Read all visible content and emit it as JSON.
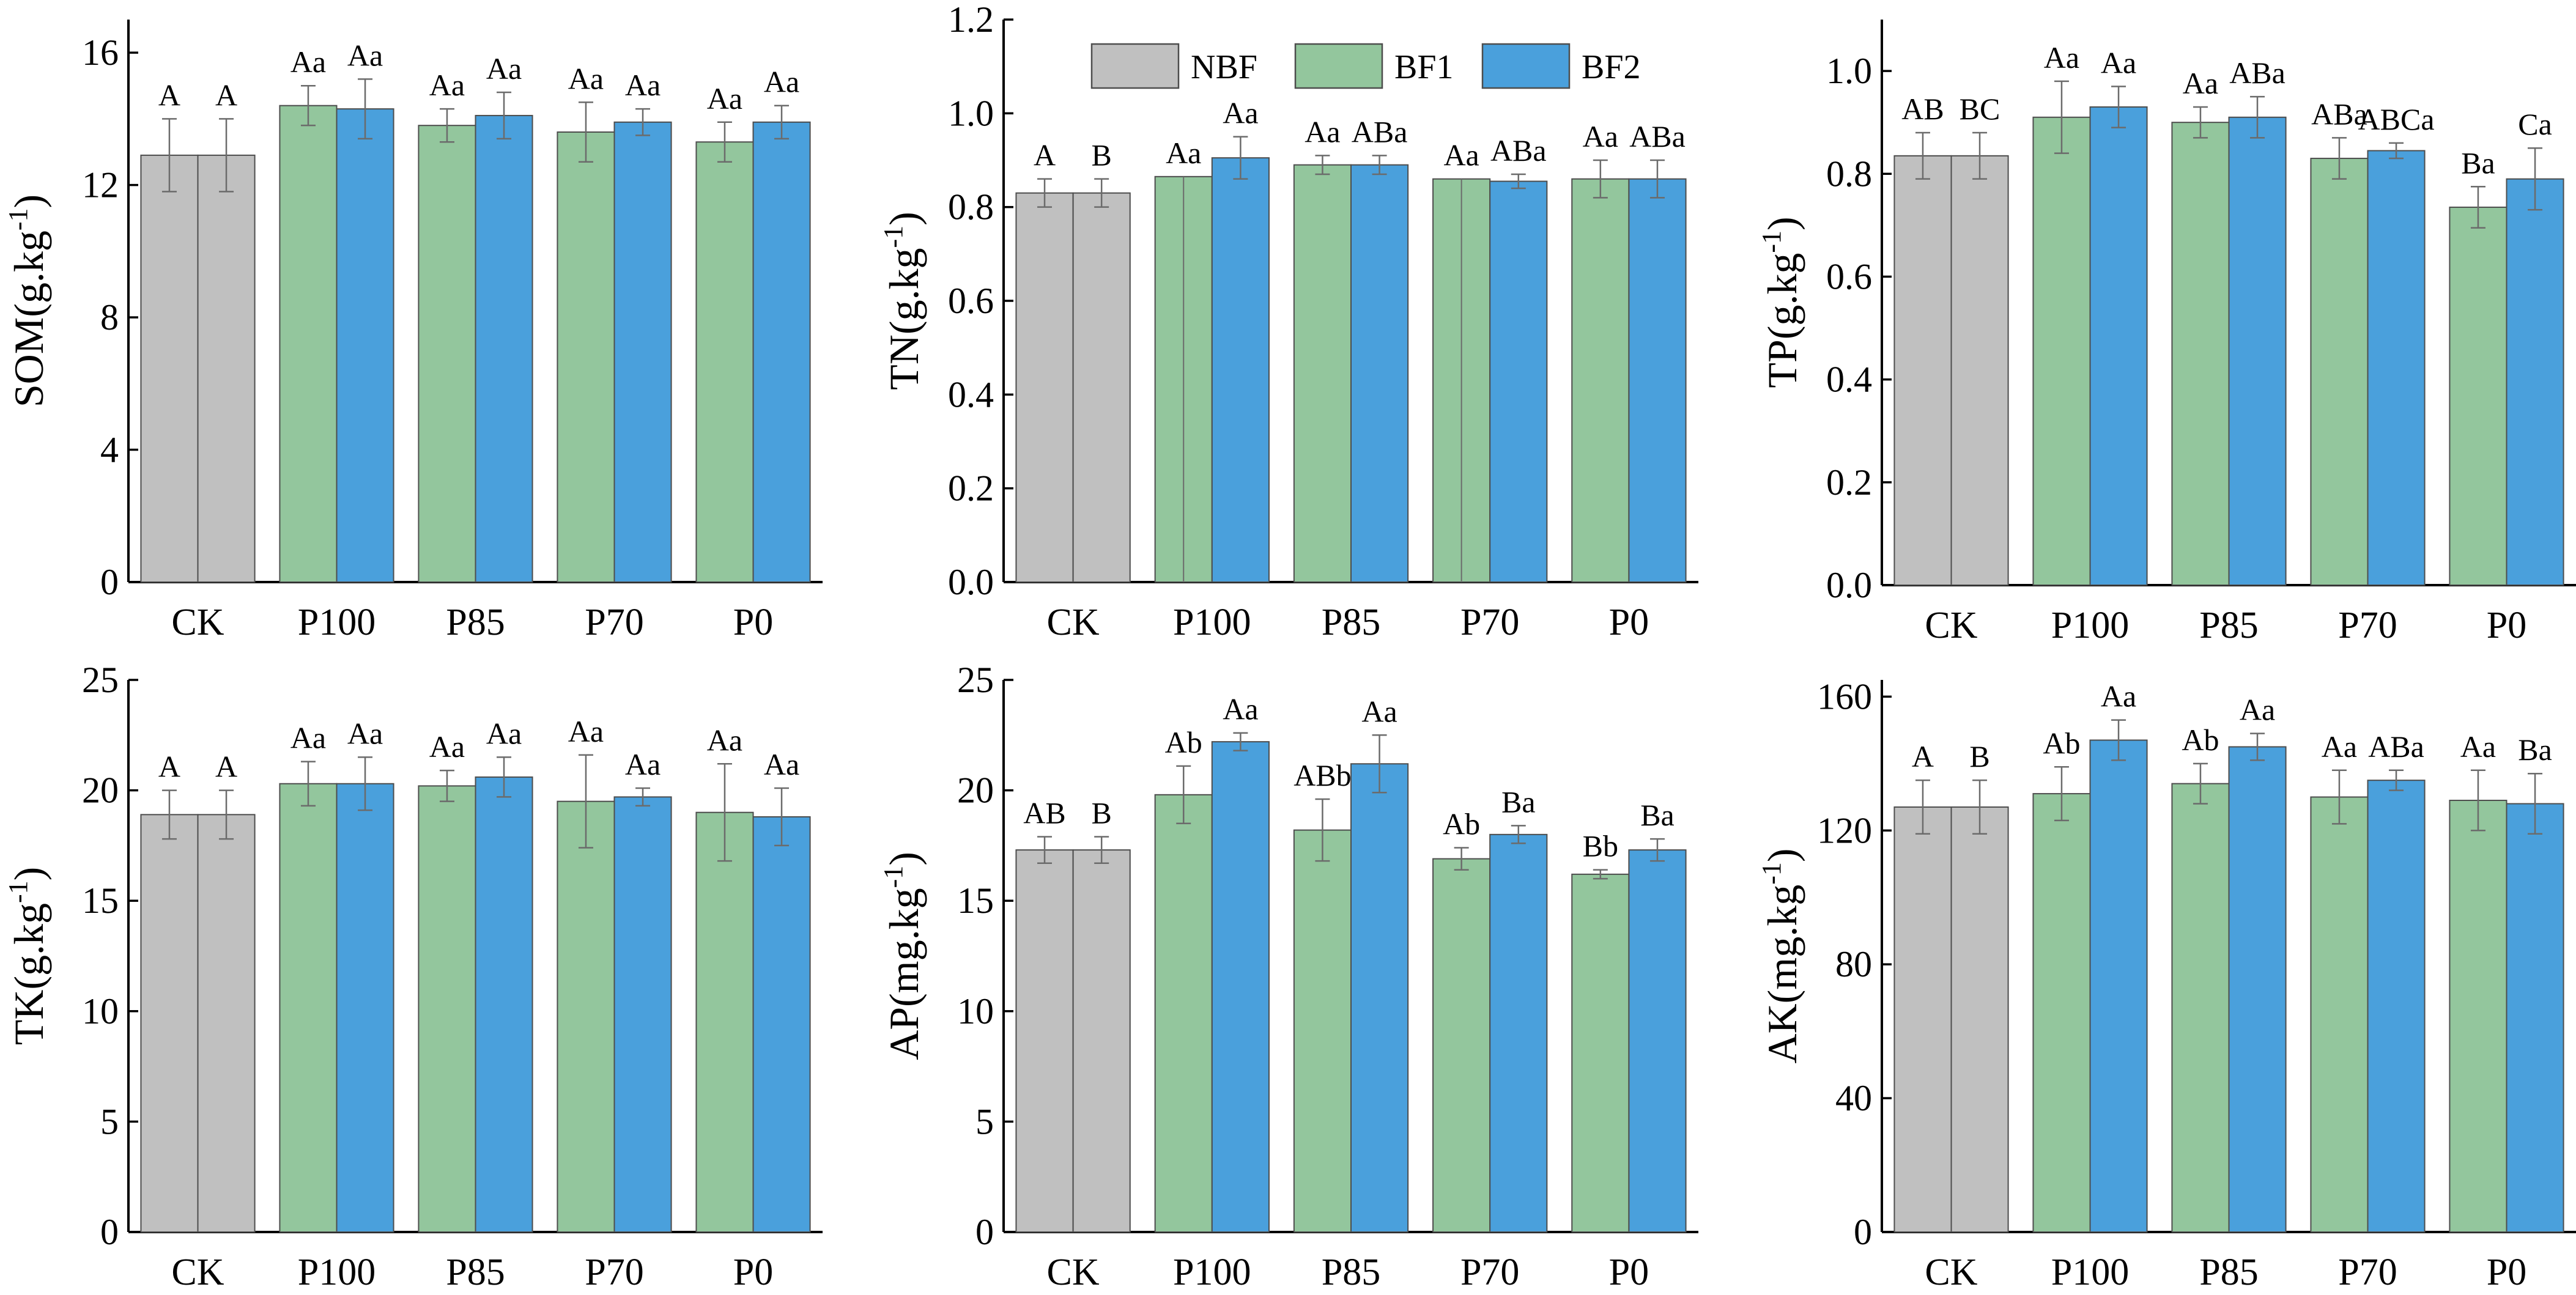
{
  "legend": {
    "items": [
      {
        "name": "NBF",
        "color": "#c0c0c0"
      },
      {
        "name": "BF1",
        "color": "#93c69d"
      },
      {
        "name": "BF2",
        "color": "#4aa0dc"
      }
    ]
  },
  "colors": {
    "NBF": "#c0c0c0",
    "BF1": "#93c69d",
    "BF2": "#4aa0dc",
    "axis": "#000000",
    "errorbar": "#6b6b6b"
  },
  "chart_data": [
    {
      "id": "som",
      "type": "bar",
      "ylabel": "SOM(g.kg",
      "ylabel_sup": "-1",
      "ylim": [
        0,
        17
      ],
      "yticks": [
        0,
        4,
        8,
        12,
        16
      ],
      "categories": [
        "CK",
        "P100",
        "P85",
        "P70",
        "P0"
      ],
      "bars": [
        [
          {
            "series": "NBF",
            "value": 12.9,
            "err": 1.1,
            "label": "A"
          },
          {
            "series": "NBF",
            "value": 12.9,
            "err": 1.1,
            "label": "A"
          }
        ],
        [
          {
            "series": "BF1",
            "value": 14.4,
            "err": 0.6,
            "label": "Aa"
          },
          {
            "series": "BF2",
            "value": 14.3,
            "err": 0.9,
            "label": "Aa"
          }
        ],
        [
          {
            "series": "BF1",
            "value": 13.8,
            "err": 0.5,
            "label": "Aa"
          },
          {
            "series": "BF2",
            "value": 14.1,
            "err": 0.7,
            "label": "Aa"
          }
        ],
        [
          {
            "series": "BF1",
            "value": 13.6,
            "err": 0.9,
            "label": "Aa"
          },
          {
            "series": "BF2",
            "value": 13.9,
            "err": 0.4,
            "label": "Aa"
          }
        ],
        [
          {
            "series": "BF1",
            "value": 13.3,
            "err": 0.6,
            "label": "Aa"
          },
          {
            "series": "BF2",
            "value": 13.9,
            "err": 0.5,
            "label": "Aa"
          }
        ]
      ]
    },
    {
      "id": "tn",
      "type": "bar",
      "ylabel": "TN(g.kg",
      "ylabel_sup": "-1",
      "ylim": [
        0,
        1.2
      ],
      "yticks": [
        0.0,
        0.2,
        0.4,
        0.6,
        0.8,
        1.0,
        1.2
      ],
      "categories": [
        "CK",
        "P100",
        "P85",
        "P70",
        "P0"
      ],
      "bars": [
        [
          {
            "series": "NBF",
            "value": 0.83,
            "err": 0.03,
            "label": "A"
          },
          {
            "series": "NBF",
            "value": 0.83,
            "err": 0.03,
            "label": "B"
          }
        ],
        [
          {
            "series": "BF1",
            "value": 0.865,
            "err": 0.0,
            "label": "Aa"
          },
          {
            "series": "BF2",
            "value": 0.905,
            "err": 0.045,
            "label": "Aa"
          }
        ],
        [
          {
            "series": "BF1",
            "value": 0.89,
            "err": 0.02,
            "label": "Aa"
          },
          {
            "series": "BF2",
            "value": 0.89,
            "err": 0.02,
            "label": "ABa"
          }
        ],
        [
          {
            "series": "BF1",
            "value": 0.86,
            "err": 0.0,
            "label": "Aa"
          },
          {
            "series": "BF2",
            "value": 0.855,
            "err": 0.015,
            "label": "ABa"
          }
        ],
        [
          {
            "series": "BF1",
            "value": 0.86,
            "err": 0.04,
            "label": "Aa"
          },
          {
            "series": "BF2",
            "value": 0.86,
            "err": 0.04,
            "label": "ABa"
          }
        ]
      ]
    },
    {
      "id": "tp",
      "type": "bar",
      "ylabel": "TP(g.kg",
      "ylabel_sup": "-1",
      "ylim": [
        0,
        1.1
      ],
      "yticks": [
        0.0,
        0.2,
        0.4,
        0.6,
        0.8,
        1.0
      ],
      "categories": [
        "CK",
        "P100",
        "P85",
        "P70",
        "P0"
      ],
      "bars": [
        [
          {
            "series": "NBF",
            "value": 0.835,
            "err": 0.045,
            "label": "AB"
          },
          {
            "series": "NBF",
            "value": 0.835,
            "err": 0.045,
            "label": "BC"
          }
        ],
        [
          {
            "series": "BF1",
            "value": 0.91,
            "err": 0.07,
            "label": "Aa"
          },
          {
            "series": "BF2",
            "value": 0.93,
            "err": 0.04,
            "label": "Aa"
          }
        ],
        [
          {
            "series": "BF1",
            "value": 0.9,
            "err": 0.03,
            "label": "Aa"
          },
          {
            "series": "BF2",
            "value": 0.91,
            "err": 0.04,
            "label": "ABa"
          }
        ],
        [
          {
            "series": "BF1",
            "value": 0.83,
            "err": 0.04,
            "label": "ABa"
          },
          {
            "series": "BF2",
            "value": 0.845,
            "err": 0.015,
            "label": "ABCa"
          }
        ],
        [
          {
            "series": "BF1",
            "value": 0.735,
            "err": 0.04,
            "label": "Ba"
          },
          {
            "series": "BF2",
            "value": 0.79,
            "err": 0.06,
            "label": "Ca"
          }
        ]
      ]
    },
    {
      "id": "tk",
      "type": "bar",
      "ylabel": "TK(g.kg",
      "ylabel_sup": "-1",
      "ylim": [
        0,
        25
      ],
      "yticks": [
        0,
        5,
        10,
        15,
        20,
        25
      ],
      "categories": [
        "CK",
        "P100",
        "P85",
        "P70",
        "P0"
      ],
      "bars": [
        [
          {
            "series": "NBF",
            "value": 18.9,
            "err": 1.1,
            "label": "A"
          },
          {
            "series": "NBF",
            "value": 18.9,
            "err": 1.1,
            "label": "A"
          }
        ],
        [
          {
            "series": "BF1",
            "value": 20.3,
            "err": 1.0,
            "label": "Aa"
          },
          {
            "series": "BF2",
            "value": 20.3,
            "err": 1.2,
            "label": "Aa"
          }
        ],
        [
          {
            "series": "BF1",
            "value": 20.2,
            "err": 0.7,
            "label": "Aa"
          },
          {
            "series": "BF2",
            "value": 20.6,
            "err": 0.9,
            "label": "Aa"
          }
        ],
        [
          {
            "series": "BF1",
            "value": 19.5,
            "err": 2.1,
            "label": "Aa"
          },
          {
            "series": "BF2",
            "value": 19.7,
            "err": 0.4,
            "label": "Aa"
          }
        ],
        [
          {
            "series": "BF1",
            "value": 19.0,
            "err": 2.2,
            "label": "Aa"
          },
          {
            "series": "BF2",
            "value": 18.8,
            "err": 1.3,
            "label": "Aa"
          }
        ]
      ]
    },
    {
      "id": "ap",
      "type": "bar",
      "ylabel": "AP(mg.kg",
      "ylabel_sup": "-1",
      "ylim": [
        0,
        25
      ],
      "yticks": [
        0,
        5,
        10,
        15,
        20,
        25
      ],
      "categories": [
        "CK",
        "P100",
        "P85",
        "P70",
        "P0"
      ],
      "bars": [
        [
          {
            "series": "NBF",
            "value": 17.3,
            "err": 0.6,
            "label": "AB"
          },
          {
            "series": "NBF",
            "value": 17.3,
            "err": 0.6,
            "label": "B"
          }
        ],
        [
          {
            "series": "BF1",
            "value": 19.8,
            "err": 1.3,
            "label": "Ab"
          },
          {
            "series": "BF2",
            "value": 22.2,
            "err": 0.4,
            "label": "Aa"
          }
        ],
        [
          {
            "series": "BF1",
            "value": 18.2,
            "err": 1.4,
            "label": "ABb"
          },
          {
            "series": "BF2",
            "value": 21.2,
            "err": 1.3,
            "label": "Aa"
          }
        ],
        [
          {
            "series": "BF1",
            "value": 16.9,
            "err": 0.5,
            "label": "Ab"
          },
          {
            "series": "BF2",
            "value": 18.0,
            "err": 0.4,
            "label": "Ba"
          }
        ],
        [
          {
            "series": "BF1",
            "value": 16.2,
            "err": 0.2,
            "label": "Bb"
          },
          {
            "series": "BF2",
            "value": 17.3,
            "err": 0.5,
            "label": "Ba"
          }
        ]
      ]
    },
    {
      "id": "ak",
      "type": "bar",
      "ylabel": "AK(mg.kg",
      "ylabel_sup": "-1",
      "ylim": [
        0,
        165
      ],
      "yticks": [
        0,
        40,
        80,
        120,
        160
      ],
      "categories": [
        "CK",
        "P100",
        "P85",
        "P70",
        "P0"
      ],
      "bars": [
        [
          {
            "series": "NBF",
            "value": 127,
            "err": 8,
            "label": "A"
          },
          {
            "series": "NBF",
            "value": 127,
            "err": 8,
            "label": "B"
          }
        ],
        [
          {
            "series": "BF1",
            "value": 131,
            "err": 8,
            "label": "Ab"
          },
          {
            "series": "BF2",
            "value": 147,
            "err": 6,
            "label": "Aa"
          }
        ],
        [
          {
            "series": "BF1",
            "value": 134,
            "err": 6,
            "label": "Ab"
          },
          {
            "series": "BF2",
            "value": 145,
            "err": 4,
            "label": "Aa"
          }
        ],
        [
          {
            "series": "BF1",
            "value": 130,
            "err": 8,
            "label": "Aa"
          },
          {
            "series": "BF2",
            "value": 135,
            "err": 3,
            "label": "ABa"
          }
        ],
        [
          {
            "series": "BF1",
            "value": 129,
            "err": 9,
            "label": "Aa"
          },
          {
            "series": "BF2",
            "value": 128,
            "err": 9,
            "label": "Ba"
          }
        ]
      ]
    }
  ]
}
